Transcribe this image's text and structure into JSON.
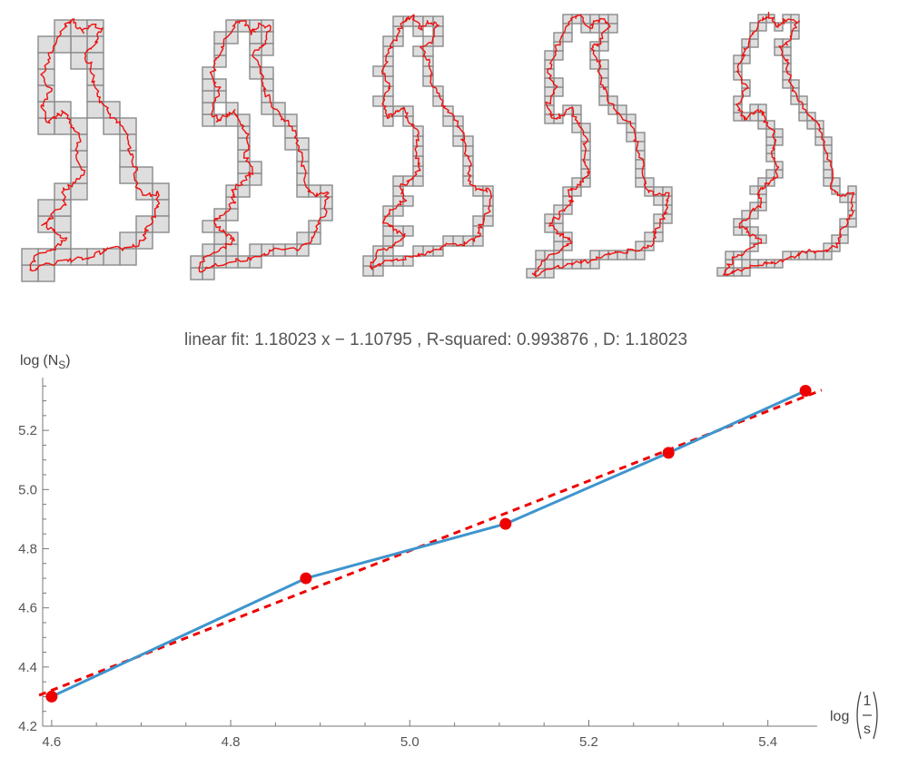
{
  "fit_label": "linear fit: 1.18023 x − 1.10795 , R-squared: 0.993876 , D: 1.18023",
  "ylabel": {
    "base": "log",
    "paren_left": "(",
    "sym": "N",
    "sub": "S",
    "paren_right": ")"
  },
  "xlabel": {
    "base": "log",
    "num": "1",
    "den": "s"
  },
  "chart_data": {
    "type": "line",
    "title": "linear fit: 1.18023 x − 1.10795 , R-squared: 0.993876 , D: 1.18023",
    "xlim": [
      4.59,
      5.45
    ],
    "ylim": [
      4.2,
      5.36
    ],
    "xticks": [
      "4.6",
      "4.8",
      "5.0",
      "5.2",
      "5.4"
    ],
    "yticks": [
      "4.2",
      "4.4",
      "4.6",
      "4.8",
      "5.0",
      "5.2"
    ],
    "grid": false,
    "series": [
      {
        "style": "solid",
        "color": "#3e95cd",
        "marker_color": "#ee0000",
        "x": [
          4.6,
          4.884,
          5.107,
          5.289,
          5.442
        ],
        "y": [
          4.3,
          4.7,
          4.884,
          5.124,
          5.334
        ]
      },
      {
        "style": "dashed",
        "color": "#ee0000",
        "slope": 1.18023,
        "intercept": -1.10795
      }
    ]
  },
  "box_count_panels": [
    {
      "grid_scale": 1
    },
    {
      "grid_scale": 2
    },
    {
      "grid_scale": 3
    },
    {
      "grid_scale": 4
    },
    {
      "grid_scale": 5
    }
  ]
}
